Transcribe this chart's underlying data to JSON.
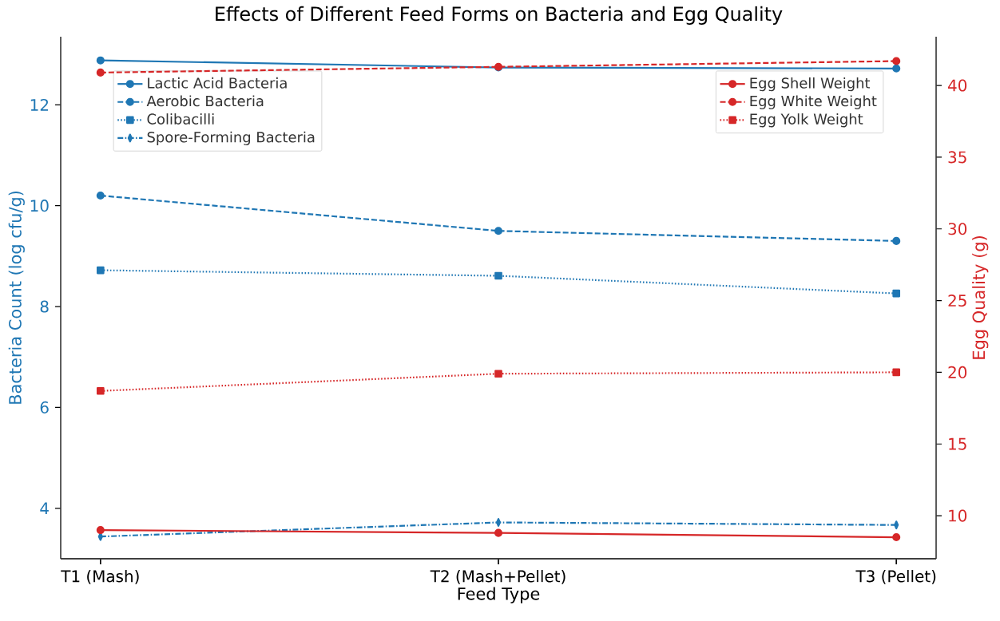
{
  "chart_data": {
    "type": "line",
    "title": "Effects of Different Feed Forms on Bacteria and Egg Quality",
    "xlabel": "Feed Type",
    "ylabel": "Bacteria Count (log cfu/g)",
    "y2label": "Egg Quality (g)",
    "categories": [
      "T1 (Mash)",
      "T2 (Mash+Pellet)",
      "T3 (Pellet)"
    ],
    "ylim": [
      3.0,
      13.35
    ],
    "yticks": [
      4,
      6,
      8,
      10,
      12
    ],
    "y2lim": [
      7,
      43.4
    ],
    "y2ticks": [
      10,
      15,
      20,
      25,
      30,
      35,
      40
    ],
    "legend": "top left",
    "series": [
      {
        "name": "Lactic Acid Bacteria",
        "color": "#1f77b4",
        "values": [
          12.88,
          12.74,
          12.72
        ],
        "marker": "circle",
        "line_style": "solid"
      },
      {
        "name": "Aerobic Bacteria",
        "color": "#1f77b4",
        "values": [
          10.2,
          9.5,
          9.3
        ],
        "marker": "circle",
        "line_style": "dashed"
      },
      {
        "name": "Colibacilli",
        "color": "#1f77b4",
        "values": [
          8.72,
          8.61,
          8.26
        ],
        "marker": "square",
        "line_style": "dotted"
      },
      {
        "name": "Spore-Forming Bacteria",
        "color": "#1f77b4",
        "values": [
          3.44,
          3.72,
          3.67
        ],
        "marker": "diamond",
        "line_style": "dashdot"
      },
      {
        "name": "Egg Shell Weight",
        "color": "#d62728",
        "values": [
          9.0,
          8.8,
          8.5
        ],
        "marker": "circle",
        "line_style": "solid",
        "axis": "y2"
      },
      {
        "name": "Egg White Weight",
        "color": "#d62728",
        "values": [
          40.9,
          41.3,
          41.7
        ],
        "marker": "circle",
        "line_style": "dashed",
        "axis": "y2"
      },
      {
        "name": "Egg Yolk Weight",
        "color": "#d62728",
        "values": [
          18.7,
          19.9,
          20.0
        ],
        "marker": "square",
        "line_style": "dotted",
        "axis": "y2"
      }
    ]
  }
}
